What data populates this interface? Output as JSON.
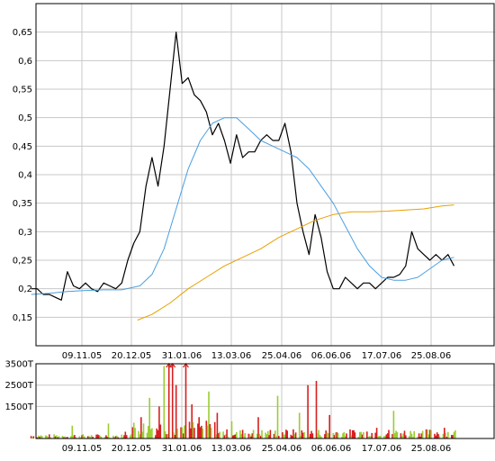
{
  "colors": {
    "price": "#000000",
    "ma_short": "#4a9fe0",
    "ma_long": "#e8a000",
    "vol_up": "#9acd32",
    "vol_down": "#d81e1e",
    "grid": "#c8c8c8"
  },
  "chart_data": [
    {
      "type": "line",
      "title": "",
      "xlabel": "",
      "ylabel": "",
      "grid": true,
      "x_ticks": [
        "09.11.05",
        "20.12.05",
        "31.01.06",
        "13.03.06",
        "25.04.06",
        "06.06.06",
        "17.07.06",
        "25.08.06"
      ],
      "y_ticks": [
        "0,15",
        "0,2",
        "0,25",
        "0,3",
        "0,35",
        "0,4",
        "0,45",
        "0,5",
        "0,55",
        "0,6",
        "0,65"
      ],
      "ylim": [
        0.1,
        0.7
      ],
      "series": [
        {
          "name": "",
          "color_key": "price",
          "x": [
            "2005-09-28",
            "2005-10-03",
            "2005-10-08",
            "2005-10-13",
            "2005-10-18",
            "2005-10-23",
            "2005-10-28",
            "2005-11-02",
            "2005-11-07",
            "2005-11-12",
            "2005-11-17",
            "2005-11-22",
            "2005-11-27",
            "2005-12-02",
            "2005-12-07",
            "2005-12-12",
            "2005-12-17",
            "2005-12-22",
            "2005-12-27",
            "2006-01-01",
            "2006-01-06",
            "2006-01-11",
            "2006-01-16",
            "2006-01-21",
            "2006-01-26",
            "2006-01-31",
            "2006-02-05",
            "2006-02-10",
            "2006-02-15",
            "2006-02-20",
            "2006-02-25",
            "2006-03-02",
            "2006-03-07",
            "2006-03-12",
            "2006-03-17",
            "2006-03-22",
            "2006-03-27",
            "2006-04-01",
            "2006-04-06",
            "2006-04-11",
            "2006-04-16",
            "2006-04-21",
            "2006-04-26",
            "2006-05-01",
            "2006-05-06",
            "2006-05-11",
            "2006-05-16",
            "2006-05-21",
            "2006-05-26",
            "2006-05-31",
            "2006-06-05",
            "2006-06-10",
            "2006-06-15",
            "2006-06-20",
            "2006-06-25",
            "2006-06-30",
            "2006-07-05",
            "2006-07-10",
            "2006-07-15",
            "2006-07-20",
            "2006-07-25",
            "2006-07-30",
            "2006-08-04",
            "2006-08-09",
            "2006-08-14",
            "2006-08-19",
            "2006-08-24",
            "2006-08-29",
            "2006-09-03",
            "2006-09-08",
            "2006-09-13"
          ],
          "values": [
            0.2,
            0.2,
            0.19,
            0.19,
            0.185,
            0.18,
            0.23,
            0.205,
            0.2,
            0.21,
            0.2,
            0.195,
            0.21,
            0.205,
            0.2,
            0.21,
            0.25,
            0.28,
            0.3,
            0.38,
            0.43,
            0.38,
            0.45,
            0.55,
            0.65,
            0.56,
            0.57,
            0.54,
            0.53,
            0.51,
            0.47,
            0.49,
            0.46,
            0.42,
            0.47,
            0.43,
            0.44,
            0.44,
            0.46,
            0.47,
            0.46,
            0.46,
            0.49,
            0.44,
            0.35,
            0.3,
            0.26,
            0.33,
            0.29,
            0.23,
            0.2,
            0.2,
            0.22,
            0.21,
            0.2,
            0.21,
            0.21,
            0.2,
            0.21,
            0.22,
            0.22,
            0.225,
            0.24,
            0.3,
            0.27,
            0.26,
            0.25,
            0.26,
            0.25,
            0.26,
            0.24
          ]
        },
        {
          "name": "",
          "color_key": "ma_short",
          "x": [
            "2005-09-28",
            "2005-10-13",
            "2005-10-28",
            "2005-11-12",
            "2005-11-27",
            "2005-12-12",
            "2005-12-27",
            "2006-01-06",
            "2006-01-16",
            "2006-01-26",
            "2006-02-05",
            "2006-02-15",
            "2006-02-25",
            "2006-03-07",
            "2006-03-17",
            "2006-03-27",
            "2006-04-06",
            "2006-04-16",
            "2006-04-26",
            "2006-05-06",
            "2006-05-16",
            "2006-05-26",
            "2006-06-05",
            "2006-06-15",
            "2006-06-25",
            "2006-07-05",
            "2006-07-15",
            "2006-07-25",
            "2006-08-04",
            "2006-08-14",
            "2006-08-24",
            "2006-09-03",
            "2006-09-13"
          ],
          "values": [
            0.19,
            0.192,
            0.195,
            0.197,
            0.198,
            0.198,
            0.205,
            0.225,
            0.27,
            0.34,
            0.41,
            0.46,
            0.49,
            0.5,
            0.5,
            0.48,
            0.46,
            0.45,
            0.44,
            0.43,
            0.41,
            0.38,
            0.35,
            0.31,
            0.27,
            0.24,
            0.22,
            0.215,
            0.215,
            0.22,
            0.235,
            0.25,
            0.255
          ]
        },
        {
          "name": "",
          "color_key": "ma_long",
          "x": [
            "2005-12-25",
            "2006-01-06",
            "2006-01-21",
            "2006-02-05",
            "2006-02-20",
            "2006-03-07",
            "2006-03-22",
            "2006-04-06",
            "2006-04-21",
            "2006-05-06",
            "2006-05-21",
            "2006-06-05",
            "2006-06-20",
            "2006-07-05",
            "2006-07-20",
            "2006-08-04",
            "2006-08-19",
            "2006-09-03",
            "2006-09-13"
          ],
          "values": [
            0.145,
            0.155,
            0.175,
            0.2,
            0.22,
            0.24,
            0.255,
            0.27,
            0.29,
            0.305,
            0.32,
            0.33,
            0.335,
            0.335,
            0.336,
            0.338,
            0.34,
            0.345,
            0.347
          ]
        }
      ]
    },
    {
      "type": "bar",
      "title": "",
      "xlabel": "",
      "ylabel": "",
      "grid": true,
      "x_ticks": [
        "09.11.05",
        "20.12.05",
        "31.01.06",
        "13.03.06",
        "25.04.06",
        "06.06.06",
        "17.07.06",
        "25.08.06"
      ],
      "y_ticks": [
        "1500T",
        "2500T",
        "3500T"
      ],
      "ylim": [
        0,
        3500
      ],
      "overflow_markers": [
        "2006-01-20",
        "2006-01-23",
        "2006-02-03"
      ],
      "volume_points": [
        {
          "d": "2005-10-15",
          "v": 750,
          "c": "up"
        },
        {
          "d": "2005-11-01",
          "v": 600,
          "c": "up"
        },
        {
          "d": "2005-11-05",
          "v": 1400,
          "c": "up"
        },
        {
          "d": "2005-12-01",
          "v": 700,
          "c": "up"
        },
        {
          "d": "2005-12-10",
          "v": 400,
          "c": "down"
        },
        {
          "d": "2005-12-28",
          "v": 1000,
          "c": "down"
        },
        {
          "d": "2006-01-04",
          "v": 1900,
          "c": "up"
        },
        {
          "d": "2006-01-08",
          "v": 2800,
          "c": "up"
        },
        {
          "d": "2006-01-12",
          "v": 1500,
          "c": "down"
        },
        {
          "d": "2006-01-16",
          "v": 3400,
          "c": "up"
        },
        {
          "d": "2006-01-20",
          "v": 3500,
          "c": "down"
        },
        {
          "d": "2006-01-23",
          "v": 3500,
          "c": "down"
        },
        {
          "d": "2006-01-26",
          "v": 2500,
          "c": "down"
        },
        {
          "d": "2006-01-29",
          "v": 2000,
          "c": "up"
        },
        {
          "d": "2006-02-03",
          "v": 3500,
          "c": "down"
        },
        {
          "d": "2006-02-08",
          "v": 1600,
          "c": "down"
        },
        {
          "d": "2006-02-14",
          "v": 1000,
          "c": "down"
        },
        {
          "d": "2006-02-22",
          "v": 2200,
          "c": "up"
        },
        {
          "d": "2006-03-01",
          "v": 1200,
          "c": "down"
        },
        {
          "d": "2006-03-13",
          "v": 800,
          "c": "up"
        },
        {
          "d": "2006-04-04",
          "v": 1000,
          "c": "down"
        },
        {
          "d": "2006-04-20",
          "v": 2000,
          "c": "up"
        },
        {
          "d": "2006-05-08",
          "v": 1200,
          "c": "up"
        },
        {
          "d": "2006-05-15",
          "v": 2500,
          "c": "down"
        },
        {
          "d": "2006-05-22",
          "v": 2700,
          "c": "down"
        },
        {
          "d": "2006-06-02",
          "v": 1100,
          "c": "down"
        },
        {
          "d": "2006-06-18",
          "v": 800,
          "c": "up"
        },
        {
          "d": "2006-07-11",
          "v": 500,
          "c": "down"
        },
        {
          "d": "2006-07-25",
          "v": 1300,
          "c": "up"
        },
        {
          "d": "2006-08-20",
          "v": 1200,
          "c": "up"
        },
        {
          "d": "2006-09-05",
          "v": 500,
          "c": "down"
        }
      ]
    }
  ]
}
